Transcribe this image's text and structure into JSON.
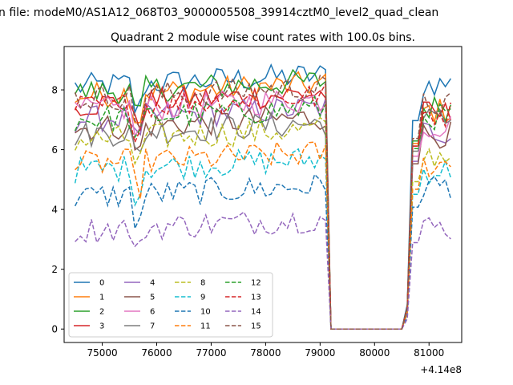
{
  "chart_data": {
    "type": "line",
    "suptitle": "n file: modeM0/AS1A12_068T03_9000005508_39914cztM0_level2_quad_clean",
    "title": "Quadrant 2 module wise count rates with 100.0s bins.",
    "xlabel": "",
    "ylabel": "",
    "x_offset_label": "+4.14e8",
    "xlim": [
      74300,
      81600
    ],
    "ylim": [
      -0.45,
      9.45
    ],
    "x_ticks": [
      75000,
      76000,
      77000,
      78000,
      79000,
      80000,
      81000
    ],
    "x_tick_labels": [
      "75000",
      "76000",
      "77000",
      "78000",
      "79000",
      "80000",
      "81000"
    ],
    "y_ticks": [
      0,
      2,
      4,
      6,
      8
    ],
    "y_tick_labels": [
      "0",
      "2",
      "4",
      "6",
      "8"
    ],
    "grid": false,
    "legend_placement": "lower-left",
    "legend_ncol": 4,
    "x_start": 74500,
    "x_step": 100,
    "gaps": [
      [
        79150,
        80550
      ]
    ],
    "gap_value": 0,
    "series": [
      {
        "name": "0",
        "color": "#1f77b4",
        "dash": "solid",
        "base": 8.1,
        "end": 8.2
      },
      {
        "name": "1",
        "color": "#ff7f0e",
        "dash": "solid",
        "base": 7.8,
        "end": 7.3
      },
      {
        "name": "2",
        "color": "#2ca02c",
        "dash": "solid",
        "base": 7.9,
        "end": 7.4
      },
      {
        "name": "3",
        "color": "#d62728",
        "dash": "solid",
        "base": 7.5,
        "end": 7.2
      },
      {
        "name": "4",
        "color": "#9467bd",
        "dash": "solid",
        "base": 7.0,
        "end": 6.6
      },
      {
        "name": "5",
        "color": "#8c564b",
        "dash": "solid",
        "base": 6.7,
        "end": 6.5
      },
      {
        "name": "6",
        "color": "#e377c2",
        "dash": "solid",
        "base": 7.3,
        "end": 6.8
      },
      {
        "name": "7",
        "color": "#7f7f7f",
        "dash": "solid",
        "base": 6.5,
        "end": 7.0
      },
      {
        "name": "8",
        "color": "#bcbd22",
        "dash": "dashed",
        "base": 6.3,
        "end": 5.8
      },
      {
        "name": "9",
        "color": "#17becf",
        "dash": "dashed",
        "base": 5.3,
        "end": 5.3
      },
      {
        "name": "10",
        "color": "#1f77b4",
        "dash": "dashed",
        "base": 4.4,
        "end": 4.8
      },
      {
        "name": "11",
        "color": "#ff7f0e",
        "dash": "dashed",
        "base": 5.5,
        "end": 5.5
      },
      {
        "name": "12",
        "color": "#2ca02c",
        "dash": "dashed",
        "base": 7.0,
        "end": 7.1
      },
      {
        "name": "13",
        "color": "#d62728",
        "dash": "dashed",
        "base": 7.4,
        "end": 7.2
      },
      {
        "name": "14",
        "color": "#9467bd",
        "dash": "dashed",
        "base": 3.3,
        "end": 3.4
      },
      {
        "name": "15",
        "color": "#8c564b",
        "dash": "dashed",
        "base": 7.7,
        "end": 7.5
      }
    ]
  }
}
